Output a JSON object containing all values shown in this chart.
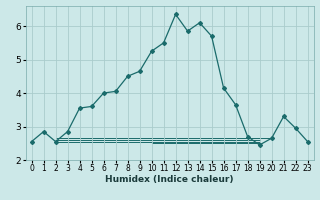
{
  "xlabel": "Humidex (Indice chaleur)",
  "bg_color": "#cce8e8",
  "grid_color": "#aacccc",
  "line_color": "#1a6b6b",
  "xlim": [
    -0.5,
    23.5
  ],
  "ylim": [
    2.0,
    6.6
  ],
  "yticks": [
    2,
    3,
    4,
    5,
    6
  ],
  "xticks": [
    0,
    1,
    2,
    3,
    4,
    5,
    6,
    7,
    8,
    9,
    10,
    11,
    12,
    13,
    14,
    15,
    16,
    17,
    18,
    19,
    20,
    21,
    22,
    23
  ],
  "main_x": [
    0,
    1,
    2,
    3,
    4,
    5,
    6,
    7,
    8,
    9,
    10,
    11,
    12,
    13,
    14,
    15,
    16,
    17,
    18,
    19,
    20,
    21,
    22,
    23
  ],
  "main_y": [
    2.55,
    2.85,
    2.55,
    2.85,
    3.55,
    3.6,
    4.0,
    4.05,
    4.5,
    4.65,
    5.25,
    5.5,
    6.35,
    5.85,
    6.1,
    5.7,
    4.15,
    3.65,
    2.7,
    2.45,
    2.65,
    3.3,
    2.95,
    2.55
  ],
  "flat_lines": [
    {
      "x": [
        2,
        19
      ],
      "y": 2.55
    },
    {
      "x": [
        2,
        19
      ],
      "y": 2.6
    },
    {
      "x": [
        2,
        20
      ],
      "y": 2.65
    },
    {
      "x": [
        10,
        19
      ],
      "y": 2.5
    }
  ],
  "xlabel_fontsize": 6.5,
  "tick_fontsize": 5.5,
  "ytick_fontsize": 6.5
}
